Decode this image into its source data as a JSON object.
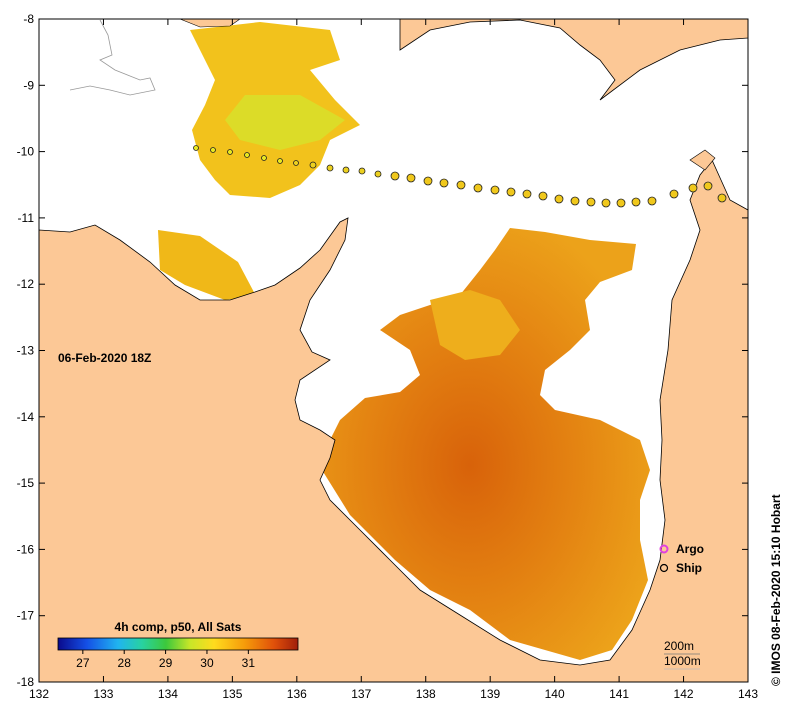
{
  "map": {
    "timestamp": "06-Feb-2020 18Z",
    "credit": "© IMOS 08-Feb-2020 15:10 Hobart",
    "lon_range": [
      132,
      143
    ],
    "lat_range": [
      -18,
      -8
    ],
    "lon_ticks": [
      "132",
      "133",
      "134",
      "135",
      "136",
      "137",
      "138",
      "139",
      "140",
      "141",
      "142",
      "143"
    ],
    "lat_ticks": [
      "-8",
      "-9",
      "-10",
      "-11",
      "-12",
      "-13",
      "-14",
      "-15",
      "-16",
      "-17",
      "-18"
    ],
    "land_color": "#fcc896",
    "ocean_color": "#ffffff"
  },
  "legend": {
    "argo_label": "Argo",
    "ship_label": "Ship",
    "argo_color": "#e040e0"
  },
  "colorbar": {
    "title": "4h comp, p50, All Sats",
    "tick_labels": [
      "27",
      "28",
      "29",
      "30",
      "31"
    ],
    "tick_values": [
      27,
      28,
      29,
      30,
      31
    ],
    "range": [
      26.4,
      32.2
    ]
  },
  "depth_legend": {
    "contour_200": "200m",
    "contour_1000": "1000m"
  }
}
